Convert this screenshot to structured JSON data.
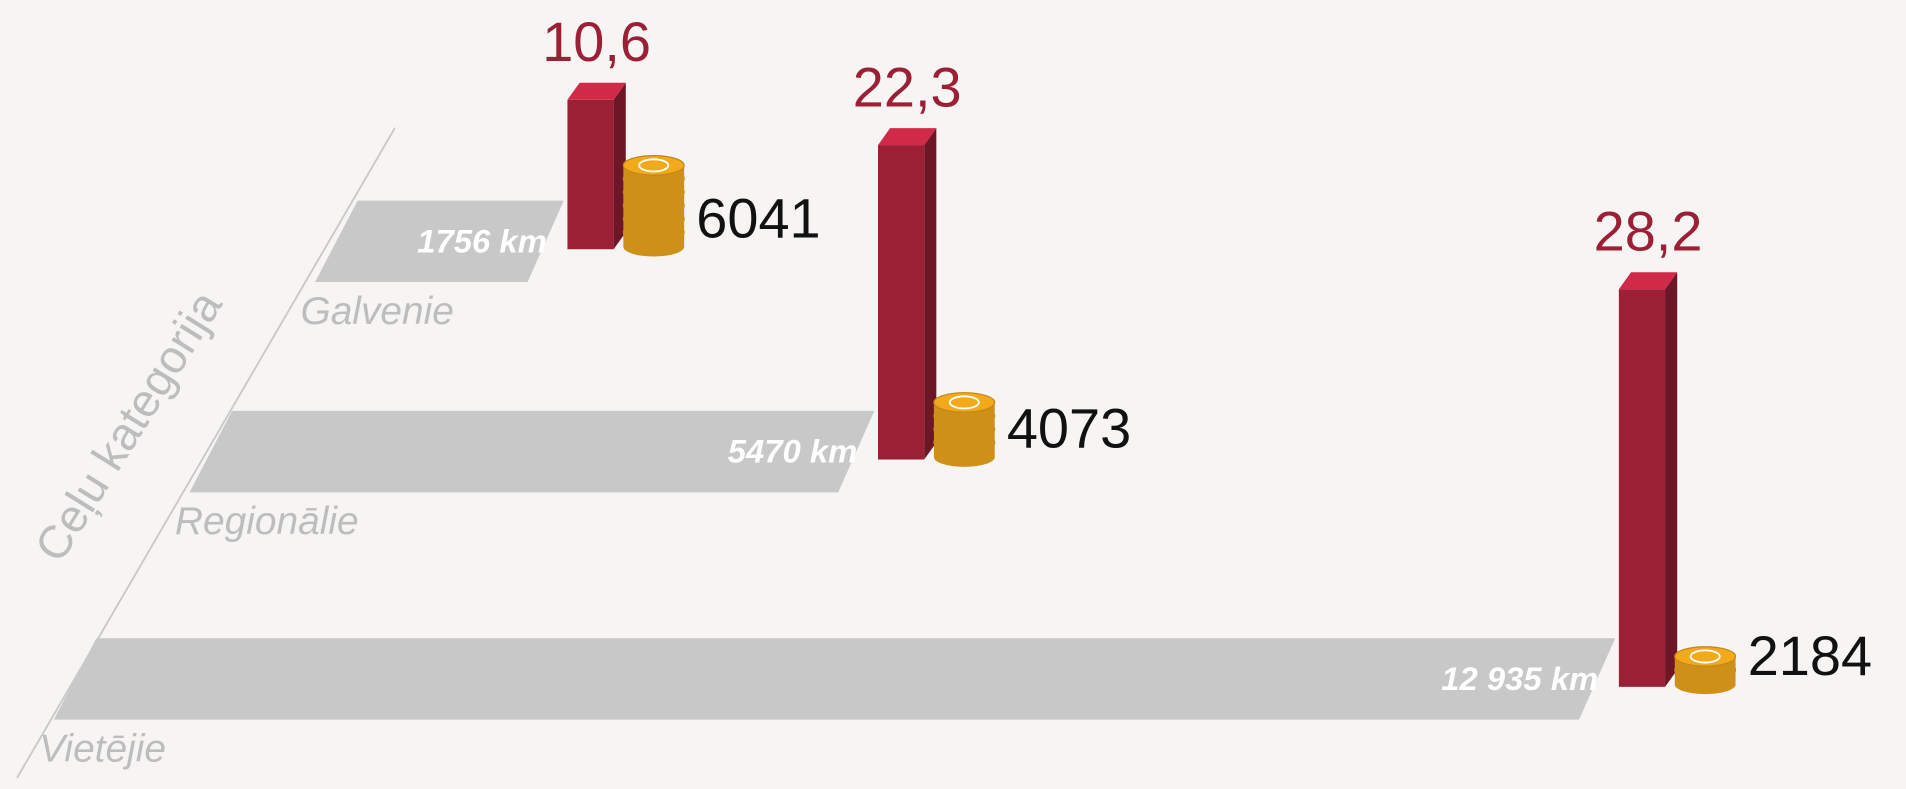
{
  "chart_data": {
    "type": "bar3d",
    "axis_label": "Ceļu kategorija",
    "categories": [
      "Galvenie",
      "Regionālie",
      "Vietējie"
    ],
    "lengths": [
      1756,
      5470,
      12935
    ],
    "length_labels": [
      "1756 km",
      "5470 km",
      "12 935 km"
    ],
    "values": [
      10.6,
      22.3,
      28.2
    ],
    "value_labels": [
      "10,6",
      "22,3",
      "28,2"
    ],
    "coins": [
      6041,
      4073,
      2184
    ],
    "color": "#9b1f35",
    "band_color": "#c8c8c8",
    "coin_color": "#f2a91c"
  }
}
